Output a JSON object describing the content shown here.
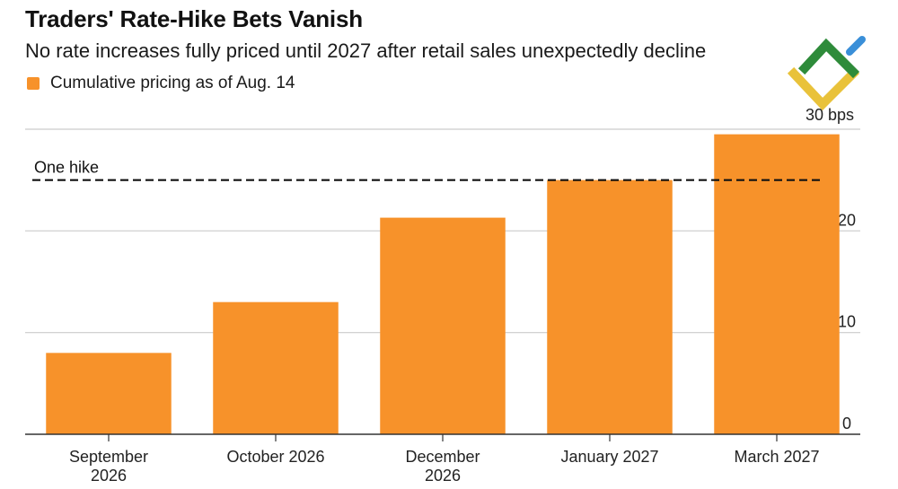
{
  "colors": {
    "bar": "#F7922A",
    "grid": "#cccccc",
    "axis": "#333333",
    "reference": "#111111",
    "logo_green": "#2E8B3A",
    "logo_yellow": "#E9C23A",
    "logo_blue": "#3A8FD8"
  },
  "logo": {
    "name": "brand-logo-icon"
  },
  "chart_data": {
    "type": "bar",
    "title": "Traders' Rate-Hike Bets Vanish",
    "subtitle": "No rate increases fully priced until 2027 after retail sales unexpectedly decline",
    "xlabel": "",
    "ylabel": "",
    "unit_label": "30 bps",
    "categories": [
      [
        "September",
        "2026"
      ],
      [
        "October 2026"
      ],
      [
        "December",
        "2026"
      ],
      [
        "January 2027"
      ],
      [
        "March 2027"
      ]
    ],
    "series": [
      {
        "name": "Cumulative pricing as of Aug. 14",
        "values": [
          8,
          13,
          21.3,
          25,
          29.5
        ]
      }
    ],
    "ylim": [
      0,
      30
    ],
    "yticks": [
      0,
      10,
      20,
      30
    ],
    "ytick_labels": [
      "0",
      "10",
      "20",
      ""
    ],
    "grid": true,
    "legend": "top-left",
    "reference_line": {
      "value": 25,
      "label": "One hike",
      "style": "dashed"
    }
  }
}
